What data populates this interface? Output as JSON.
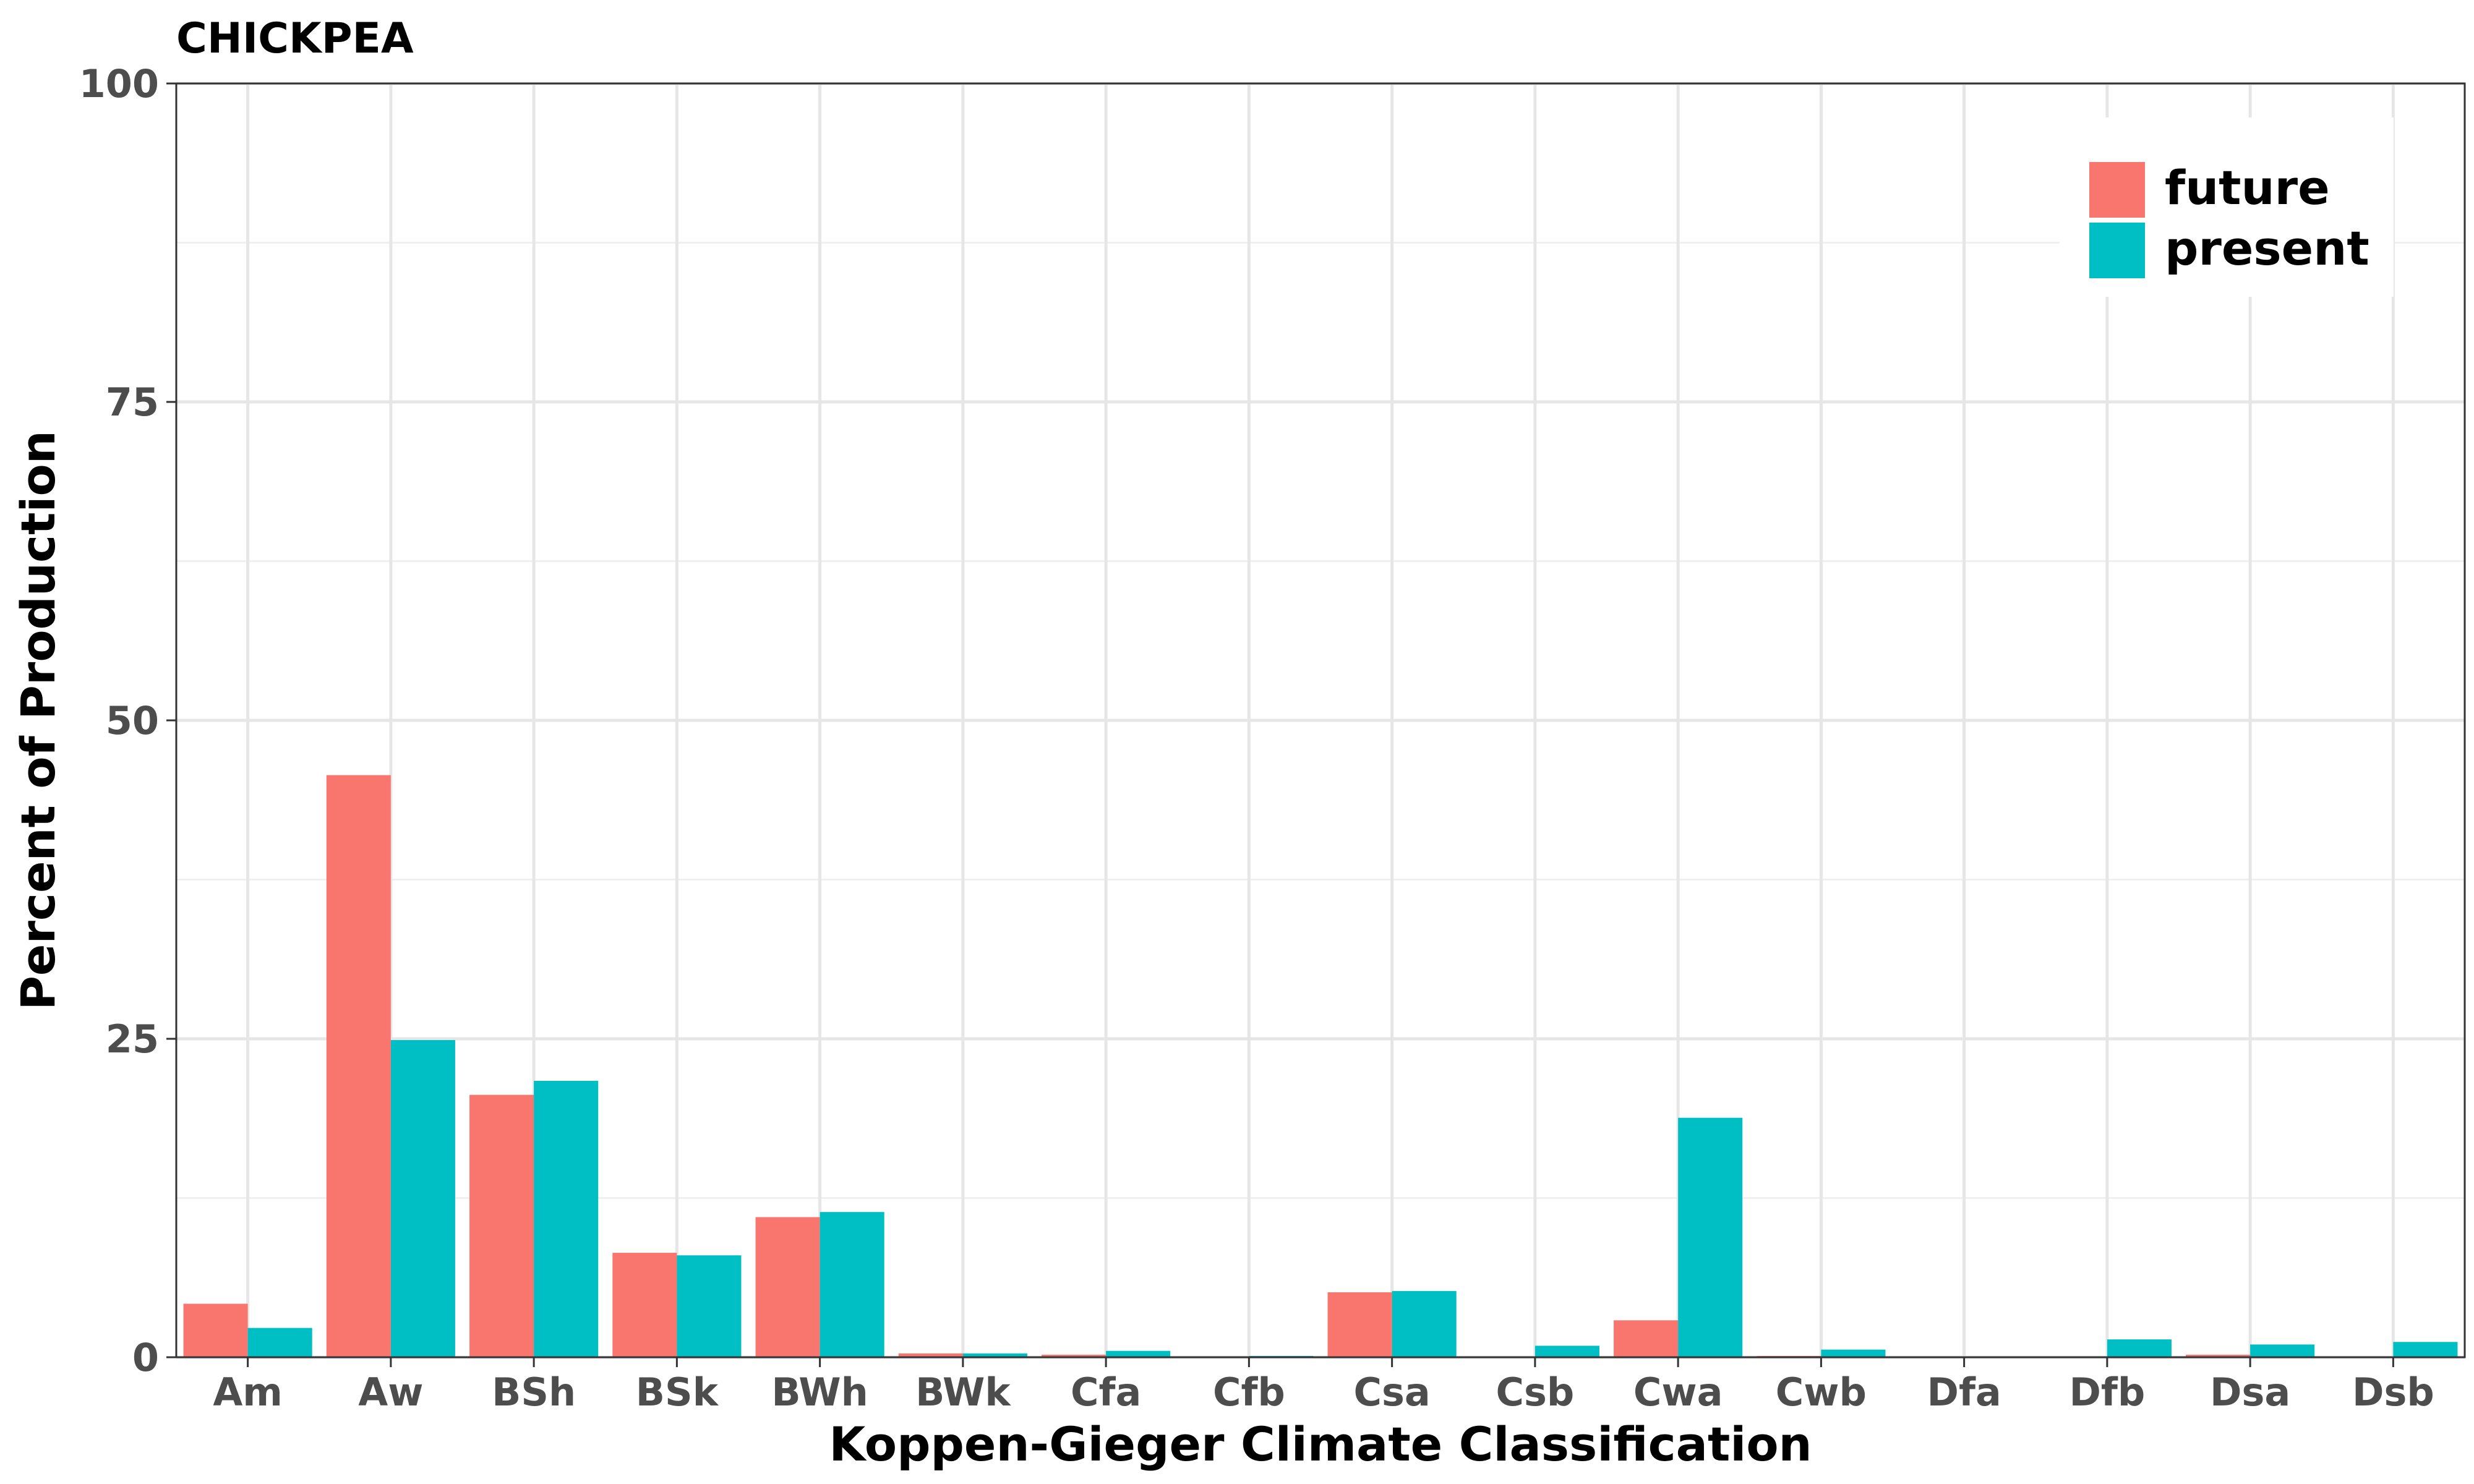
{
  "chart_data": {
    "type": "bar",
    "title": "CHICKPEA",
    "xlabel": "Koppen-Gieger Climate Classification",
    "ylabel": "Percent of Production",
    "categories": [
      "Am",
      "Aw",
      "BSh",
      "BSk",
      "BWh",
      "BWk",
      "Cfa",
      "Cfb",
      "Csa",
      "Csb",
      "Cwa",
      "Cwb",
      "Dfa",
      "Dfb",
      "Dsa",
      "Dsb"
    ],
    "series": [
      {
        "name": "future",
        "color": "#F8766D",
        "values": [
          4.2,
          45.7,
          20.6,
          8.2,
          11.0,
          0.3,
          0.2,
          0.0,
          5.1,
          0.0,
          2.9,
          0.1,
          0.0,
          0.0,
          0.2,
          0.0
        ]
      },
      {
        "name": "present",
        "color": "#00BFC4",
        "values": [
          2.3,
          24.9,
          21.7,
          8.0,
          11.4,
          0.3,
          0.5,
          0.1,
          5.2,
          0.9,
          18.8,
          0.6,
          0.0,
          1.4,
          1.0,
          1.2
        ]
      }
    ],
    "ylim": [
      0,
      100
    ],
    "yticks": [
      0,
      25,
      50,
      75,
      100
    ],
    "grid": true,
    "legend_position": "top-right"
  }
}
